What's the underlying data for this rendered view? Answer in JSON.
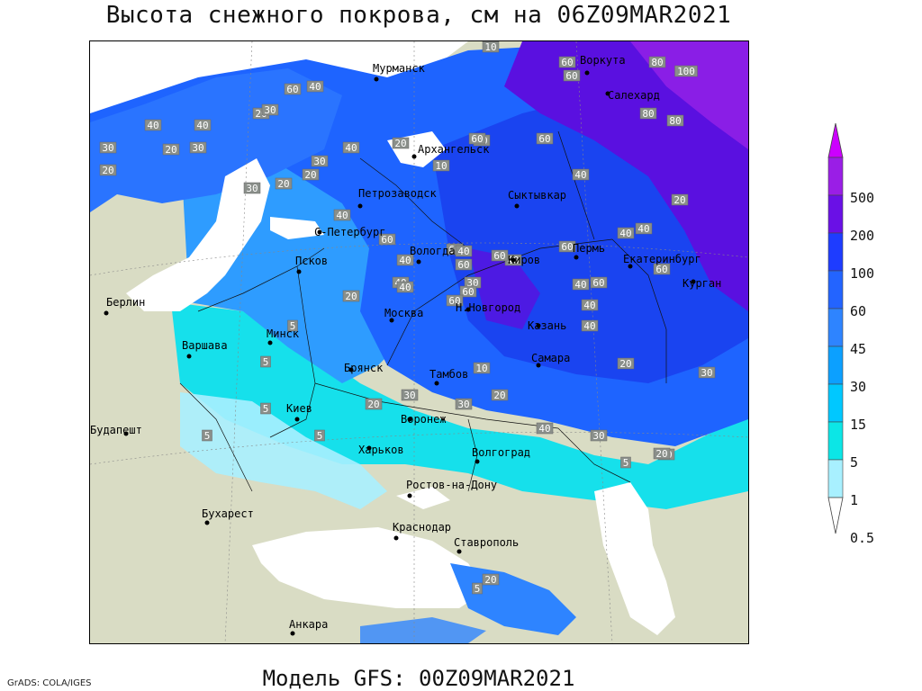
{
  "title": "Высота снежного покрова, см на 06Z09MAR2021",
  "subtitle": "Модель GFS: 00Z09MAR2021",
  "credit": "GrADS: COLA/IGES",
  "legend": {
    "levels": [
      "500",
      "200",
      "100",
      "60",
      "45",
      "30",
      "15",
      "5",
      "1",
      "0.5"
    ],
    "colors": [
      "#cc00ff",
      "#9a1ee6",
      "#6a10e6",
      "#1e3cff",
      "#2364ff",
      "#2e84ff",
      "#0ca0ff",
      "#00c8ff",
      "#0ce6e6",
      "#a8f0ff",
      "#ffffff"
    ]
  },
  "cities": [
    {
      "name": "Мурманск"
    },
    {
      "name": "Воркута"
    },
    {
      "name": "Салехард"
    },
    {
      "name": "Архангельск"
    },
    {
      "name": "Петрозаводск"
    },
    {
      "name": "Сыктывкар"
    },
    {
      "name": "С-Петербург"
    },
    {
      "name": "Вологда"
    },
    {
      "name": "Киров"
    },
    {
      "name": "Пермь"
    },
    {
      "name": "Екатеринбург"
    },
    {
      "name": "Курган"
    },
    {
      "name": "Псков"
    },
    {
      "name": "Москва"
    },
    {
      "name": "Н.Новгород"
    },
    {
      "name": "Казань"
    },
    {
      "name": "Берлин"
    },
    {
      "name": "Минск"
    },
    {
      "name": "Варшава"
    },
    {
      "name": "Брянск"
    },
    {
      "name": "Тамбов"
    },
    {
      "name": "Самара"
    },
    {
      "name": "Киев"
    },
    {
      "name": "Воронеж"
    },
    {
      "name": "Харьков"
    },
    {
      "name": "Будапешт"
    },
    {
      "name": "Волгоград"
    },
    {
      "name": "Ростов-на-Дону"
    },
    {
      "name": "Бухарест"
    },
    {
      "name": "Краснодар"
    },
    {
      "name": "Ставрополь"
    },
    {
      "name": "Анкара"
    }
  ],
  "contour_labels": [
    "10",
    "60",
    "80",
    "100",
    "80",
    "60",
    "40",
    "60",
    "60",
    "60",
    "20",
    "30",
    "40",
    "20",
    "30",
    "40",
    "30",
    "20",
    "20",
    "30",
    "20",
    "40",
    "30",
    "40",
    "60",
    "60",
    "40",
    "30",
    "40",
    "20",
    "60",
    "40",
    "60",
    "80",
    "20",
    "40",
    "40",
    "60",
    "40",
    "40",
    "60",
    "40",
    "40",
    "60",
    "40",
    "30",
    "5",
    "5",
    "20",
    "30",
    "20",
    "40",
    "5",
    "5",
    "5",
    "30",
    "40",
    "20",
    "20",
    "5",
    "20",
    "20",
    "30",
    "10",
    "10",
    "60",
    "60",
    "60",
    "5",
    "20"
  ]
}
